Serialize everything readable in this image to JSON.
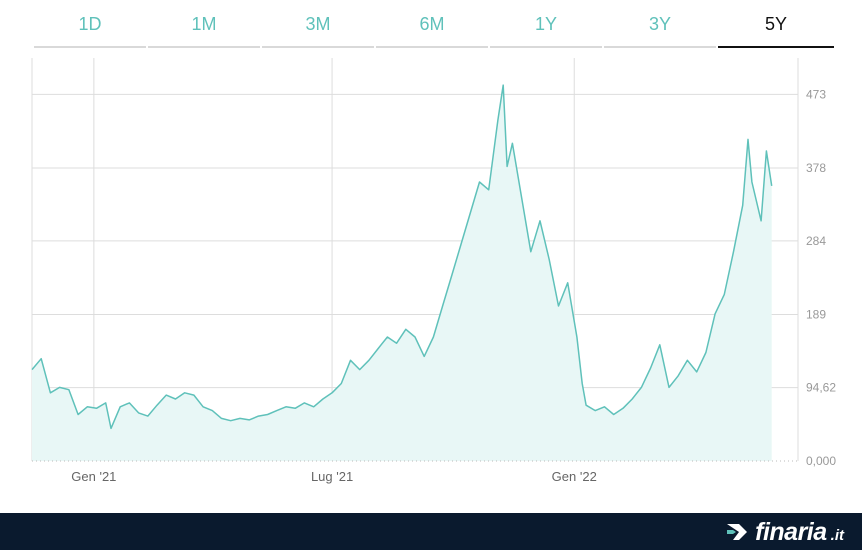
{
  "tabs": [
    {
      "label": "1D",
      "active": false
    },
    {
      "label": "1M",
      "active": false
    },
    {
      "label": "3M",
      "active": false
    },
    {
      "label": "6M",
      "active": false
    },
    {
      "label": "1Y",
      "active": false
    },
    {
      "label": "3Y",
      "active": false
    },
    {
      "label": "5Y",
      "active": true
    }
  ],
  "brand": {
    "name": "finaria",
    "tld": ".it",
    "icon": "finaria-logo-icon"
  },
  "colors": {
    "line": "#5fc1ba",
    "fill": "#e8f7f6",
    "tab_text": "#5fc1ba",
    "tab_active": "#111111",
    "grid": "#dddddd",
    "footer": "#0a1a2e"
  },
  "chart_data": {
    "type": "area",
    "title": "",
    "xlabel": "",
    "ylabel": "",
    "ylim": [
      0,
      520
    ],
    "y_ticks": [
      {
        "value": 0,
        "label": "0,000"
      },
      {
        "value": 94.62,
        "label": "94,62"
      },
      {
        "value": 189,
        "label": "189"
      },
      {
        "value": 284,
        "label": "284"
      },
      {
        "value": 378,
        "label": "378"
      },
      {
        "value": 473,
        "label": "473"
      }
    ],
    "x_ticks": [
      {
        "date": "2021-01-01",
        "label": "Gen '21"
      },
      {
        "date": "2021-07-01",
        "label": "Lug '21"
      },
      {
        "date": "2022-01-01",
        "label": "Gen '22"
      }
    ],
    "xlim": [
      "2020-11-15",
      "2022-06-20"
    ],
    "grid": true,
    "series": [
      {
        "points": [
          [
            "2020-11-15",
            118
          ],
          [
            "2020-11-22",
            132
          ],
          [
            "2020-11-29",
            88
          ],
          [
            "2020-12-06",
            95
          ],
          [
            "2020-12-13",
            92
          ],
          [
            "2020-12-20",
            60
          ],
          [
            "2020-12-27",
            70
          ],
          [
            "2021-01-03",
            68
          ],
          [
            "2021-01-10",
            75
          ],
          [
            "2021-01-14",
            42
          ],
          [
            "2021-01-21",
            70
          ],
          [
            "2021-01-28",
            75
          ],
          [
            "2021-02-04",
            62
          ],
          [
            "2021-02-11",
            58
          ],
          [
            "2021-02-18",
            72
          ],
          [
            "2021-02-25",
            85
          ],
          [
            "2021-03-04",
            80
          ],
          [
            "2021-03-11",
            88
          ],
          [
            "2021-03-18",
            85
          ],
          [
            "2021-03-25",
            70
          ],
          [
            "2021-04-01",
            65
          ],
          [
            "2021-04-08",
            55
          ],
          [
            "2021-04-15",
            52
          ],
          [
            "2021-04-22",
            55
          ],
          [
            "2021-04-29",
            53
          ],
          [
            "2021-05-06",
            58
          ],
          [
            "2021-05-13",
            60
          ],
          [
            "2021-05-20",
            65
          ],
          [
            "2021-05-27",
            70
          ],
          [
            "2021-06-03",
            68
          ],
          [
            "2021-06-10",
            75
          ],
          [
            "2021-06-17",
            70
          ],
          [
            "2021-06-24",
            80
          ],
          [
            "2021-07-01",
            88
          ],
          [
            "2021-07-08",
            100
          ],
          [
            "2021-07-15",
            130
          ],
          [
            "2021-07-22",
            118
          ],
          [
            "2021-07-29",
            130
          ],
          [
            "2021-08-05",
            145
          ],
          [
            "2021-08-12",
            160
          ],
          [
            "2021-08-19",
            152
          ],
          [
            "2021-08-26",
            170
          ],
          [
            "2021-09-02",
            160
          ],
          [
            "2021-09-09",
            135
          ],
          [
            "2021-09-16",
            160
          ],
          [
            "2021-09-23",
            200
          ],
          [
            "2021-09-30",
            240
          ],
          [
            "2021-10-07",
            280
          ],
          [
            "2021-10-14",
            320
          ],
          [
            "2021-10-21",
            360
          ],
          [
            "2021-10-28",
            350
          ],
          [
            "2021-11-04",
            440
          ],
          [
            "2021-11-08",
            485
          ],
          [
            "2021-11-11",
            380
          ],
          [
            "2021-11-15",
            410
          ],
          [
            "2021-11-22",
            340
          ],
          [
            "2021-11-29",
            270
          ],
          [
            "2021-12-06",
            310
          ],
          [
            "2021-12-13",
            260
          ],
          [
            "2021-12-20",
            200
          ],
          [
            "2021-12-27",
            230
          ],
          [
            "2022-01-03",
            160
          ],
          [
            "2022-01-07",
            100
          ],
          [
            "2022-01-10",
            72
          ],
          [
            "2022-01-17",
            65
          ],
          [
            "2022-01-24",
            70
          ],
          [
            "2022-01-31",
            60
          ],
          [
            "2022-02-07",
            68
          ],
          [
            "2022-02-14",
            80
          ],
          [
            "2022-02-21",
            95
          ],
          [
            "2022-02-28",
            120
          ],
          [
            "2022-03-07",
            150
          ],
          [
            "2022-03-14",
            95
          ],
          [
            "2022-03-21",
            110
          ],
          [
            "2022-03-28",
            130
          ],
          [
            "2022-04-04",
            115
          ],
          [
            "2022-04-11",
            140
          ],
          [
            "2022-04-18",
            190
          ],
          [
            "2022-04-25",
            215
          ],
          [
            "2022-05-02",
            270
          ],
          [
            "2022-05-09",
            330
          ],
          [
            "2022-05-13",
            415
          ],
          [
            "2022-05-16",
            360
          ],
          [
            "2022-05-23",
            310
          ],
          [
            "2022-05-27",
            400
          ],
          [
            "2022-05-31",
            355
          ]
        ]
      }
    ]
  }
}
